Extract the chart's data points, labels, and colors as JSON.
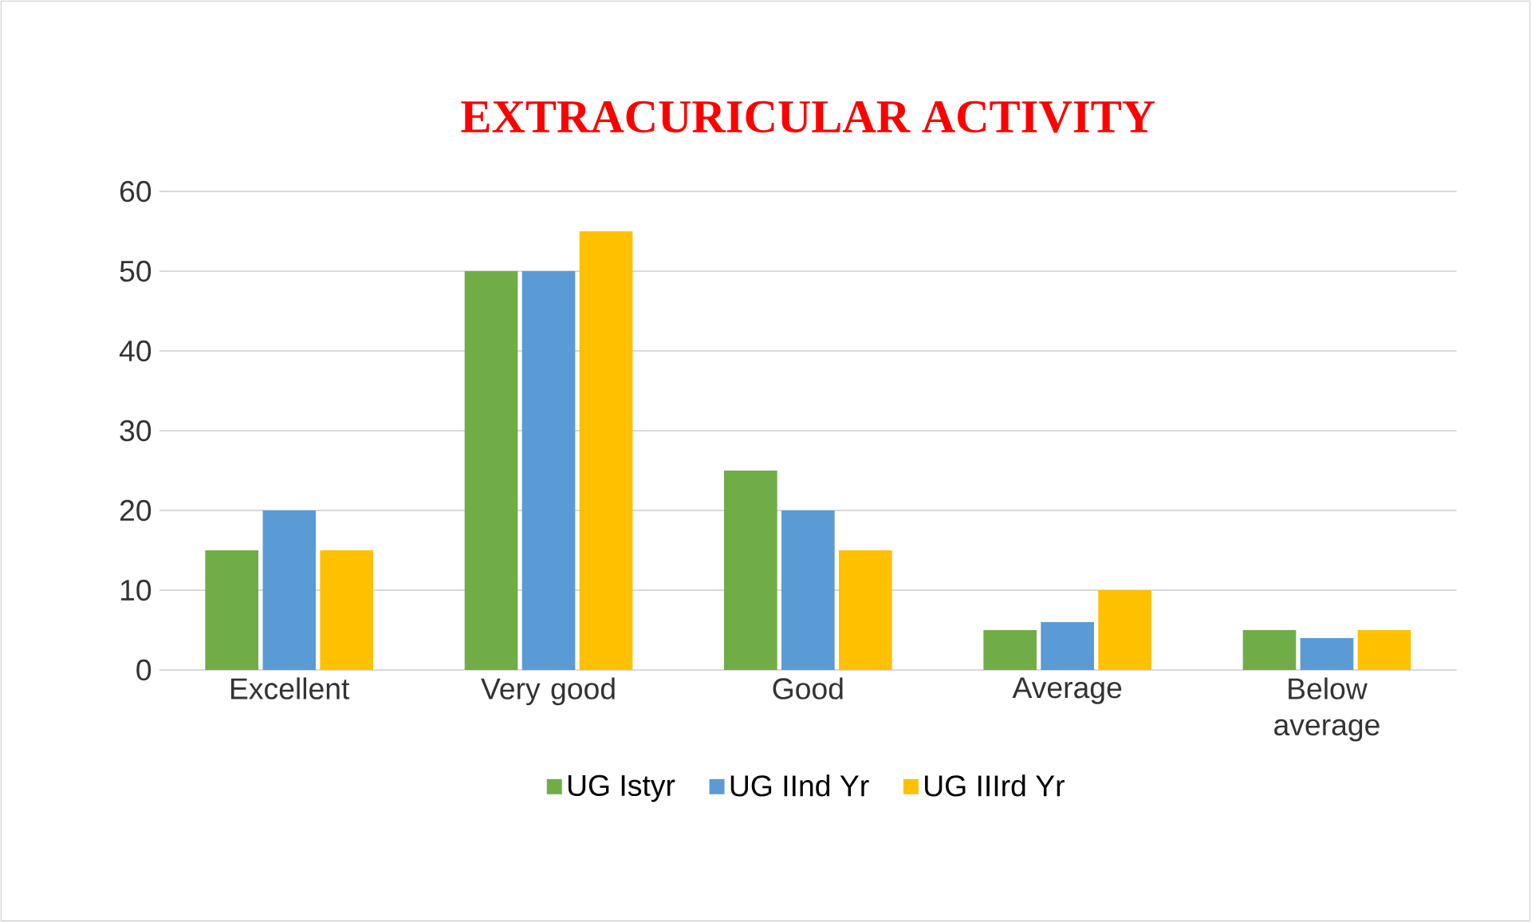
{
  "chart_data": {
    "type": "bar",
    "title": "EXTRACURICULAR ACTIVITY",
    "categories": [
      "Excellent",
      "Very good",
      "Good",
      "Average",
      "Below average"
    ],
    "series": [
      {
        "name": "UG Istyr",
        "color": "#70ad47",
        "values": [
          15,
          50,
          25,
          5,
          5
        ]
      },
      {
        "name": "UG IInd Yr",
        "color": "#5b9bd5",
        "values": [
          20,
          50,
          20,
          6,
          4
        ]
      },
      {
        "name": "UG IIIrd Yr",
        "color": "#ffc000",
        "values": [
          15,
          55,
          15,
          10,
          5
        ]
      }
    ],
    "ylim": [
      0,
      60
    ],
    "yticks": [
      0,
      10,
      20,
      30,
      40,
      50,
      60
    ],
    "grid": "y",
    "legend": "bottom"
  }
}
